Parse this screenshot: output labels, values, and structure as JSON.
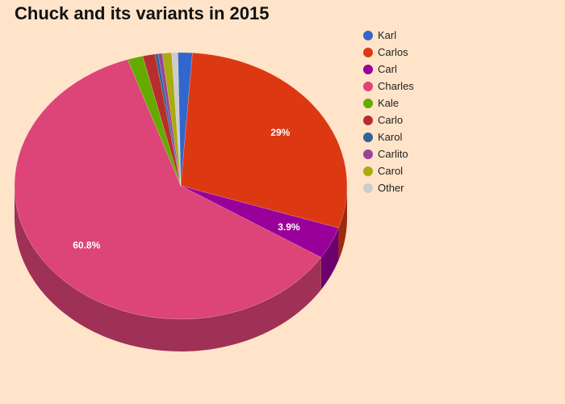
{
  "chart_data": {
    "type": "pie",
    "title": "Chuck and its variants in 2015",
    "legend_position": "right",
    "slices": [
      {
        "name": "Karl",
        "value": 1.4,
        "color": "#3366cc",
        "label": ""
      },
      {
        "name": "Carlos",
        "value": 29,
        "color": "#dc3912",
        "label": "29%"
      },
      {
        "name": "Carl",
        "value": 3.9,
        "color": "#990099",
        "label": "3.9%"
      },
      {
        "name": "Charles",
        "value": 60.8,
        "color": "#dd4477",
        "label": "60.8%"
      },
      {
        "name": "Kale",
        "value": 1.5,
        "color": "#66aa00",
        "label": ""
      },
      {
        "name": "Carlo",
        "value": 1.2,
        "color": "#b82e2e",
        "label": ""
      },
      {
        "name": "Karol",
        "value": 0.3,
        "color": "#316395",
        "label": ""
      },
      {
        "name": "Carlito",
        "value": 0.4,
        "color": "#994499",
        "label": ""
      },
      {
        "name": "Carol",
        "value": 0.9,
        "color": "#aaaa11",
        "label": ""
      },
      {
        "name": "Other",
        "value": 0.6,
        "color": "#cccccc",
        "label": ""
      }
    ]
  }
}
